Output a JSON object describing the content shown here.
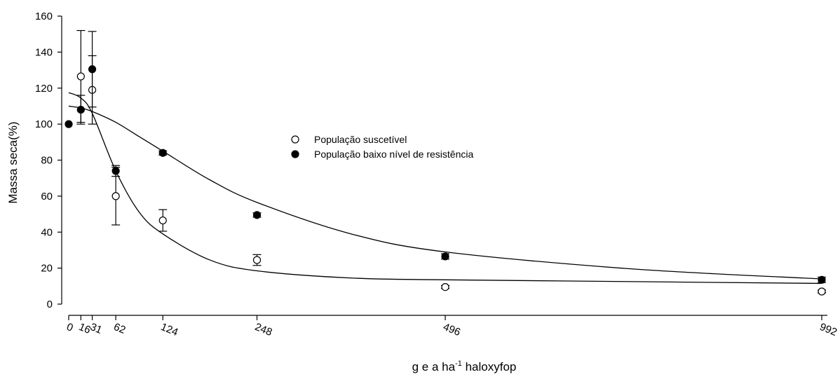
{
  "chart_data": {
    "type": "scatter",
    "xlabel_parts": {
      "main": "g e a ha",
      "sup": "-1",
      "tail": " haloxyfop"
    },
    "ylabel": "Massa seca(%)",
    "xlim": [
      0,
      1010
    ],
    "ylim": [
      0,
      160
    ],
    "x_ticks": [
      0,
      16,
      31,
      62,
      124,
      248,
      496,
      992
    ],
    "y_ticks": [
      0,
      20,
      40,
      60,
      80,
      100,
      120,
      140,
      160
    ],
    "legend_position": "center",
    "series": [
      {
        "name": "População suscetível",
        "marker": "open-circle",
        "points": [
          {
            "x": 16,
            "y": 126.5,
            "err": 25.5
          },
          {
            "x": 31,
            "y": 119,
            "err": 19
          },
          {
            "x": 62,
            "y": 60,
            "err": 16
          },
          {
            "x": 124,
            "y": 46.5,
            "err": 6
          },
          {
            "x": 248,
            "y": 24.5,
            "err": 3
          },
          {
            "x": 496,
            "y": 9.5,
            "err": 0.8
          },
          {
            "x": 992,
            "y": 7,
            "err": 0.8
          }
        ],
        "curve": [
          [
            0,
            117.5
          ],
          [
            16,
            114.5
          ],
          [
            31,
            106
          ],
          [
            62,
            74
          ],
          [
            93,
            51
          ],
          [
            124,
            39
          ],
          [
            186,
            24.5
          ],
          [
            248,
            18.5
          ],
          [
            372,
            14.5
          ],
          [
            496,
            13.5
          ],
          [
            744,
            12.5
          ],
          [
            992,
            11.5
          ]
        ]
      },
      {
        "name": "População baixo nível de resistência",
        "marker": "filled-circle",
        "points": [
          {
            "x": 0,
            "y": 100,
            "err": 0
          },
          {
            "x": 16,
            "y": 108,
            "err": 8
          },
          {
            "x": 31,
            "y": 130.5,
            "err": 21
          },
          {
            "x": 62,
            "y": 74,
            "err": 3
          },
          {
            "x": 124,
            "y": 84,
            "err": 1.2
          },
          {
            "x": 248,
            "y": 49.5,
            "err": 1.2
          },
          {
            "x": 496,
            "y": 26.5,
            "err": 1.5
          },
          {
            "x": 992,
            "y": 13.5,
            "err": 1.5
          }
        ],
        "curve": [
          [
            0,
            110
          ],
          [
            16,
            109
          ],
          [
            31,
            107
          ],
          [
            62,
            101
          ],
          [
            93,
            93
          ],
          [
            124,
            85
          ],
          [
            186,
            69
          ],
          [
            248,
            56.5
          ],
          [
            372,
            39
          ],
          [
            496,
            29
          ],
          [
            744,
            19.5
          ],
          [
            992,
            14
          ]
        ]
      }
    ]
  }
}
